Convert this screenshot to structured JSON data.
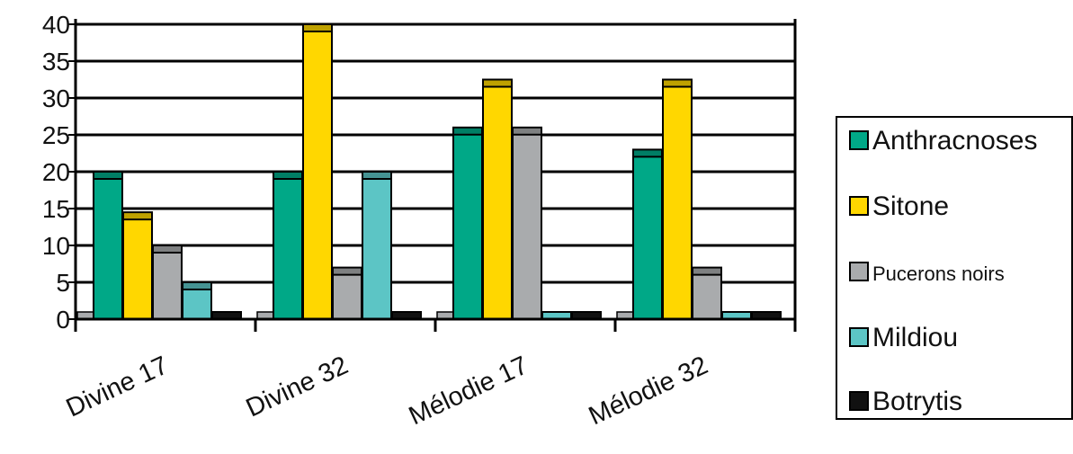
{
  "chart_data": {
    "type": "bar",
    "title": "",
    "xlabel": "",
    "ylabel": "",
    "categories": [
      "Divine 17",
      "Divine 32",
      "Mélodie 17",
      "Mélodie 32"
    ],
    "ylim": [
      0,
      40
    ],
    "yticks": [
      0,
      5,
      10,
      15,
      20,
      25,
      30,
      35,
      40
    ],
    "grid": true,
    "legend_position": "right",
    "series": [
      {
        "name": "Anthracnoses",
        "color": "#00a887",
        "values": [
          20,
          20,
          26,
          23
        ]
      },
      {
        "name": "Sitone",
        "color": "#ffd700",
        "values": [
          14.5,
          40,
          32.5,
          32.5
        ]
      },
      {
        "name": "Pucerons noirs",
        "color": "#a9abad",
        "values": [
          10,
          7,
          26,
          7
        ]
      },
      {
        "name": "Mildiou",
        "color": "#5cc5c5",
        "values": [
          5,
          20,
          0,
          0
        ]
      },
      {
        "name": "Botrytis",
        "color": "#111111",
        "values": [
          0,
          0,
          0,
          0
        ]
      }
    ]
  }
}
